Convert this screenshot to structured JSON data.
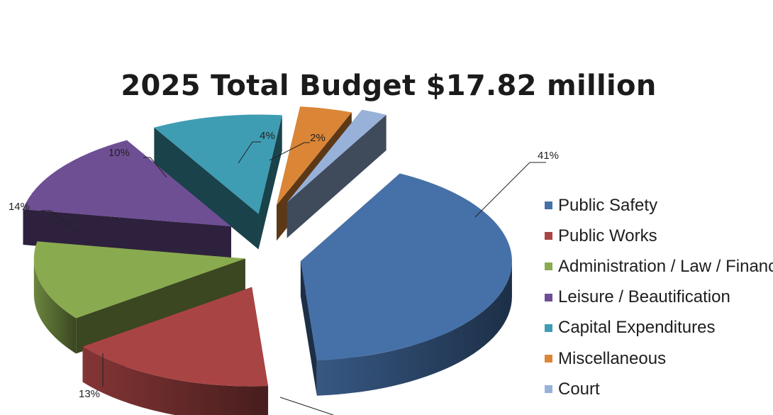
{
  "colors": {
    "public_safety": "#4671a8",
    "public_works": "#a94444",
    "administration": "#8aaa4f",
    "leisure": "#6e4f94",
    "capital": "#3e9db3",
    "miscellaneous": "#db8536",
    "court": "#97b1d9"
  },
  "chart_data": {
    "type": "pie",
    "title": "2025  Total Budget $17.82 million",
    "legend_position": "right",
    "style": "3d-exploded",
    "slices": [
      {
        "name": "Public Safety",
        "value": 41,
        "label": "41%",
        "color": "#4671a8"
      },
      {
        "name": "Public Works",
        "value": 16,
        "label": "",
        "color": "#a94444"
      },
      {
        "name": "Administration / Law / Finance",
        "value": 13,
        "label": "13%",
        "color": "#8aaa4f"
      },
      {
        "name": "Leisure / Beautification",
        "value": 14,
        "label": "14%",
        "color": "#6e4f94"
      },
      {
        "name": "Capital Expenditures",
        "value": 10,
        "label": "10%",
        "color": "#3e9db3"
      },
      {
        "name": "Miscellaneous",
        "value": 4,
        "label": "4%",
        "color": "#db8536"
      },
      {
        "name": "Court",
        "value": 2,
        "label": "2%",
        "color": "#97b1d9"
      }
    ]
  }
}
